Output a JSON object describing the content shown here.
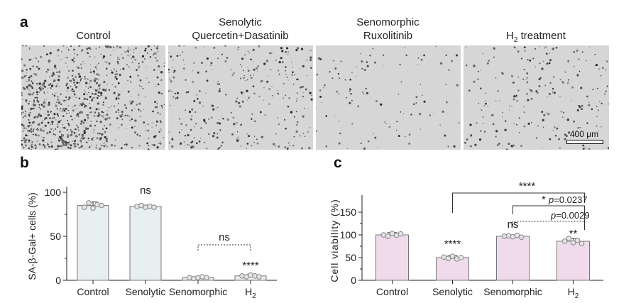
{
  "panel_a": {
    "letter": "a",
    "titles": [
      {
        "line1": "Control",
        "line2": ""
      },
      {
        "line1": "Senolytic",
        "line2": "Quercetin+Dasatinib"
      },
      {
        "line1": "Senomorphic",
        "line2": "Ruxolitinib"
      },
      {
        "line1": "H",
        "sub": "2",
        "line2_rest": " treatment"
      }
    ],
    "scale_bar_label": "400 μm",
    "image_density": [
      1.0,
      0.35,
      0.12,
      0.25
    ]
  },
  "chart_data": [
    {
      "panel": "b",
      "type": "bar",
      "ylabel": "SA-β-Gal+ cells (%)",
      "categories": [
        "Control",
        "Senolytic",
        "Senomorphic",
        "H"
      ],
      "category_subscripts": [
        "",
        "",
        "",
        "2"
      ],
      "values": [
        85,
        84,
        3,
        5
      ],
      "errors": [
        4,
        1.5,
        1,
        1.5
      ],
      "points": [
        [
          83,
          88,
          82,
          86,
          85
        ],
        [
          84,
          85,
          83,
          84,
          83
        ],
        [
          3,
          2,
          3,
          4,
          3
        ],
        [
          5,
          4,
          6,
          5,
          4
        ]
      ],
      "ylim": [
        0,
        100
      ],
      "yticks": [
        0,
        50,
        100
      ],
      "bar_color": "#e8eff0",
      "annotations": [
        {
          "category": 1,
          "text": "ns"
        },
        {
          "category": 3,
          "text": "****"
        }
      ],
      "brackets": [
        {
          "from": 2,
          "to": 3,
          "text": "ns",
          "style": "dotted"
        }
      ]
    },
    {
      "panel": "c",
      "type": "bar",
      "ylabel": "Cell viability (%)",
      "categories": [
        "Control",
        "Senolytic",
        "Senomorphic",
        "H"
      ],
      "category_subscripts": [
        "",
        "",
        "",
        "2"
      ],
      "values": [
        100,
        50,
        97,
        86
      ],
      "errors": [
        5,
        4,
        3,
        6
      ],
      "points": [
        [
          100,
          97,
          103,
          99,
          102
        ],
        [
          51,
          48,
          53,
          47,
          50
        ],
        [
          97,
          98,
          96,
          99,
          95
        ],
        [
          86,
          92,
          83,
          88,
          81
        ]
      ],
      "ylim": [
        0,
        175
      ],
      "yticks": [
        0,
        50,
        100,
        150
      ],
      "bar_color": "#f0dbec",
      "annotations": [
        {
          "category": 1,
          "text": "****"
        },
        {
          "category": 2,
          "text": "ns"
        },
        {
          "category": 3,
          "text": "**"
        }
      ],
      "brackets": [
        {
          "from": 1,
          "to": 3,
          "text": "****",
          "style": "solid"
        },
        {
          "from": 2,
          "to": 3,
          "stars": "*",
          "p_label": "p",
          "p_value": "=0.0237",
          "style": "solid"
        },
        {
          "from": 2,
          "to": 3,
          "p_label": "p",
          "p_value": "=0.0029",
          "style": "dotted"
        }
      ]
    }
  ]
}
